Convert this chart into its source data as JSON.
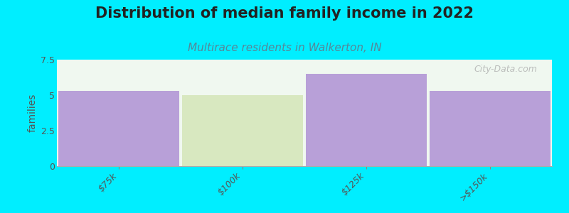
{
  "title": "Distribution of median family income in 2022",
  "subtitle": "Multirace residents in Walkerton, IN",
  "categories": [
    "$75k",
    "$100k",
    "$125k",
    ">$150k"
  ],
  "values": [
    5.3,
    5.0,
    6.5,
    5.3
  ],
  "bar_colors": [
    "#b8a0d8",
    "#d8e8c0",
    "#b8a0d8",
    "#b8a0d8"
  ],
  "background_color": "#00eeff",
  "plot_bg_color": "#f0f8f0",
  "ylabel": "families",
  "ylim": [
    0,
    7.5
  ],
  "yticks": [
    0,
    2.5,
    5,
    7.5
  ],
  "watermark": "City-Data.com",
  "title_fontsize": 15,
  "subtitle_fontsize": 11,
  "title_color": "#222222",
  "subtitle_color": "#558899"
}
